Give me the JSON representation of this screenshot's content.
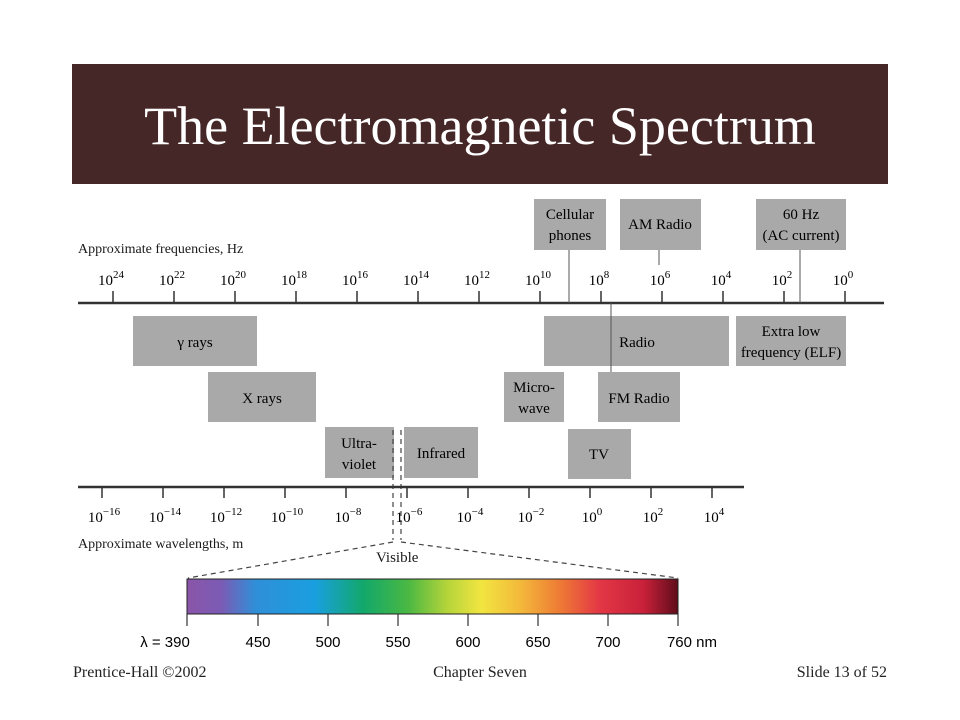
{
  "slide": {
    "title": "The Electromagnetic Spectrum"
  },
  "diagram": {
    "freq_axis_label": "Approximate frequencies, Hz",
    "freq_ticks": [
      {
        "base": "10",
        "exp": "24"
      },
      {
        "base": "10",
        "exp": "22"
      },
      {
        "base": "10",
        "exp": "20"
      },
      {
        "base": "10",
        "exp": "18"
      },
      {
        "base": "10",
        "exp": "16"
      },
      {
        "base": "10",
        "exp": "14"
      },
      {
        "base": "10",
        "exp": "12"
      },
      {
        "base": "10",
        "exp": "10"
      },
      {
        "base": "10",
        "exp": "8"
      },
      {
        "base": "10",
        "exp": "6"
      },
      {
        "base": "10",
        "exp": "4"
      },
      {
        "base": "10",
        "exp": "2"
      },
      {
        "base": "10",
        "exp": "0"
      }
    ],
    "wave_axis_label": "Approximate wavelengths, m",
    "wave_ticks": [
      {
        "base": "10",
        "exp": "−16"
      },
      {
        "base": "10",
        "exp": "−14"
      },
      {
        "base": "10",
        "exp": "−12"
      },
      {
        "base": "10",
        "exp": "−10"
      },
      {
        "base": "10",
        "exp": "−8"
      },
      {
        "base": "10",
        "exp": "−6"
      },
      {
        "base": "10",
        "exp": "−4"
      },
      {
        "base": "10",
        "exp": "−2"
      },
      {
        "base": "10",
        "exp": "0"
      },
      {
        "base": "10",
        "exp": "2"
      },
      {
        "base": "10",
        "exp": "4"
      }
    ],
    "bands": {
      "gamma": "γ rays",
      "xrays": "X rays",
      "uv": [
        "Ultra-",
        "violet"
      ],
      "infrared": "Infrared",
      "microwave": [
        "Micro-",
        "wave"
      ],
      "radio": "Radio",
      "fm_radio": "FM Radio",
      "tv": "TV",
      "elf": [
        "Extra low",
        "frequency (ELF)"
      ]
    },
    "callouts": {
      "cellular": [
        "Cellular",
        "phones"
      ],
      "am_radio": "AM Radio",
      "hz60": [
        "60 Hz",
        "(AC current)"
      ]
    },
    "visible": {
      "label": "Visible",
      "ticks": [
        "λ = 390",
        "450",
        "500",
        "550",
        "600",
        "650",
        "700",
        "760 nm"
      ]
    }
  },
  "footer": {
    "left": "Prentice-Hall ©2002",
    "center": "Chapter Seven",
    "right": "Slide 13 of 52"
  },
  "colors": {
    "title_bg": "#462727",
    "band_box": "#a9a9a9",
    "axis": "#333333"
  }
}
